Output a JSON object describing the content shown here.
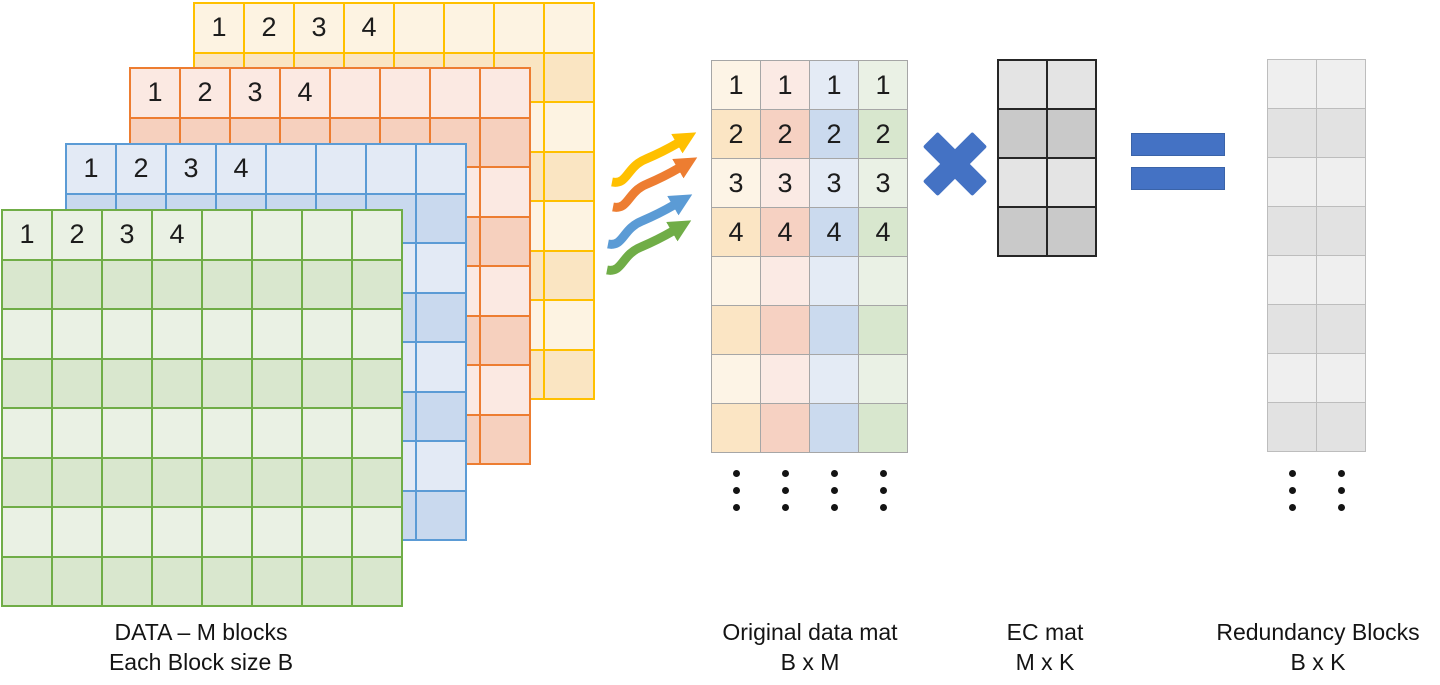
{
  "diagram": {
    "blocks": {
      "label_line1": "DATA – M blocks",
      "label_line2": "Each Block size B",
      "row_numbers": [
        "1",
        "2",
        "3",
        "4"
      ],
      "grid_rows": 8,
      "grid_cols": 8,
      "items": [
        {
          "name": "data-block-grid-yellow",
          "border": "#FFC000",
          "light": "#FDF3E2",
          "dark": "#FAE5C2"
        },
        {
          "name": "data-block-grid-orange",
          "border": "#ED7D31",
          "light": "#FBE9E2",
          "dark": "#F6D0BE"
        },
        {
          "name": "data-block-grid-blue",
          "border": "#5B9BD5",
          "light": "#E3EAF5",
          "dark": "#C9D9EE"
        },
        {
          "name": "data-block-grid-green",
          "border": "#70AD47",
          "light": "#EAF1E4",
          "dark": "#D9E7CE"
        }
      ]
    },
    "flow_arrows": [
      {
        "name": "yellow-flow-arrow",
        "color": "#FFC000"
      },
      {
        "name": "orange-flow-arrow",
        "color": "#ED7D31"
      },
      {
        "name": "blue-flow-arrow",
        "color": "#5B9BD5"
      },
      {
        "name": "green-flow-arrow",
        "color": "#70AD47"
      }
    ],
    "original_mat": {
      "label_line1": "Original data mat",
      "label_line2": "B x M",
      "rows": 8,
      "cols": 4,
      "row_numbers": [
        "1",
        "2",
        "3",
        "4"
      ],
      "border": "#A6A6A6",
      "columns": [
        {
          "light": "#FDF4E6",
          "dark": "#FBE5C4"
        },
        {
          "light": "#FBEAE4",
          "dark": "#F6D1C2"
        },
        {
          "light": "#E4EBF5",
          "dark": "#CBDAEE"
        },
        {
          "light": "#EAF1E5",
          "dark": "#D8E7CE"
        }
      ],
      "ellipsis_columns": 4
    },
    "multiply_symbol": {
      "color": "#4472C4"
    },
    "ec_mat": {
      "label_line1": "EC mat",
      "label_line2": "M x K",
      "rows": 4,
      "cols": 2,
      "border": "#262626",
      "light": "#E4E4E4",
      "dark": "#C9C9C9"
    },
    "equals_symbol": {
      "color": "#4472C4",
      "edge": "#3A63A8"
    },
    "redundancy_mat": {
      "label_line1": "Redundancy Blocks",
      "label_line2": "B x K",
      "rows": 8,
      "cols": 2,
      "border": "#BDBDBD",
      "light": "#EFEFEF",
      "dark": "#E2E2E2",
      "ellipsis_columns": 2
    },
    "ellipsis_dots_per_group": 3
  }
}
